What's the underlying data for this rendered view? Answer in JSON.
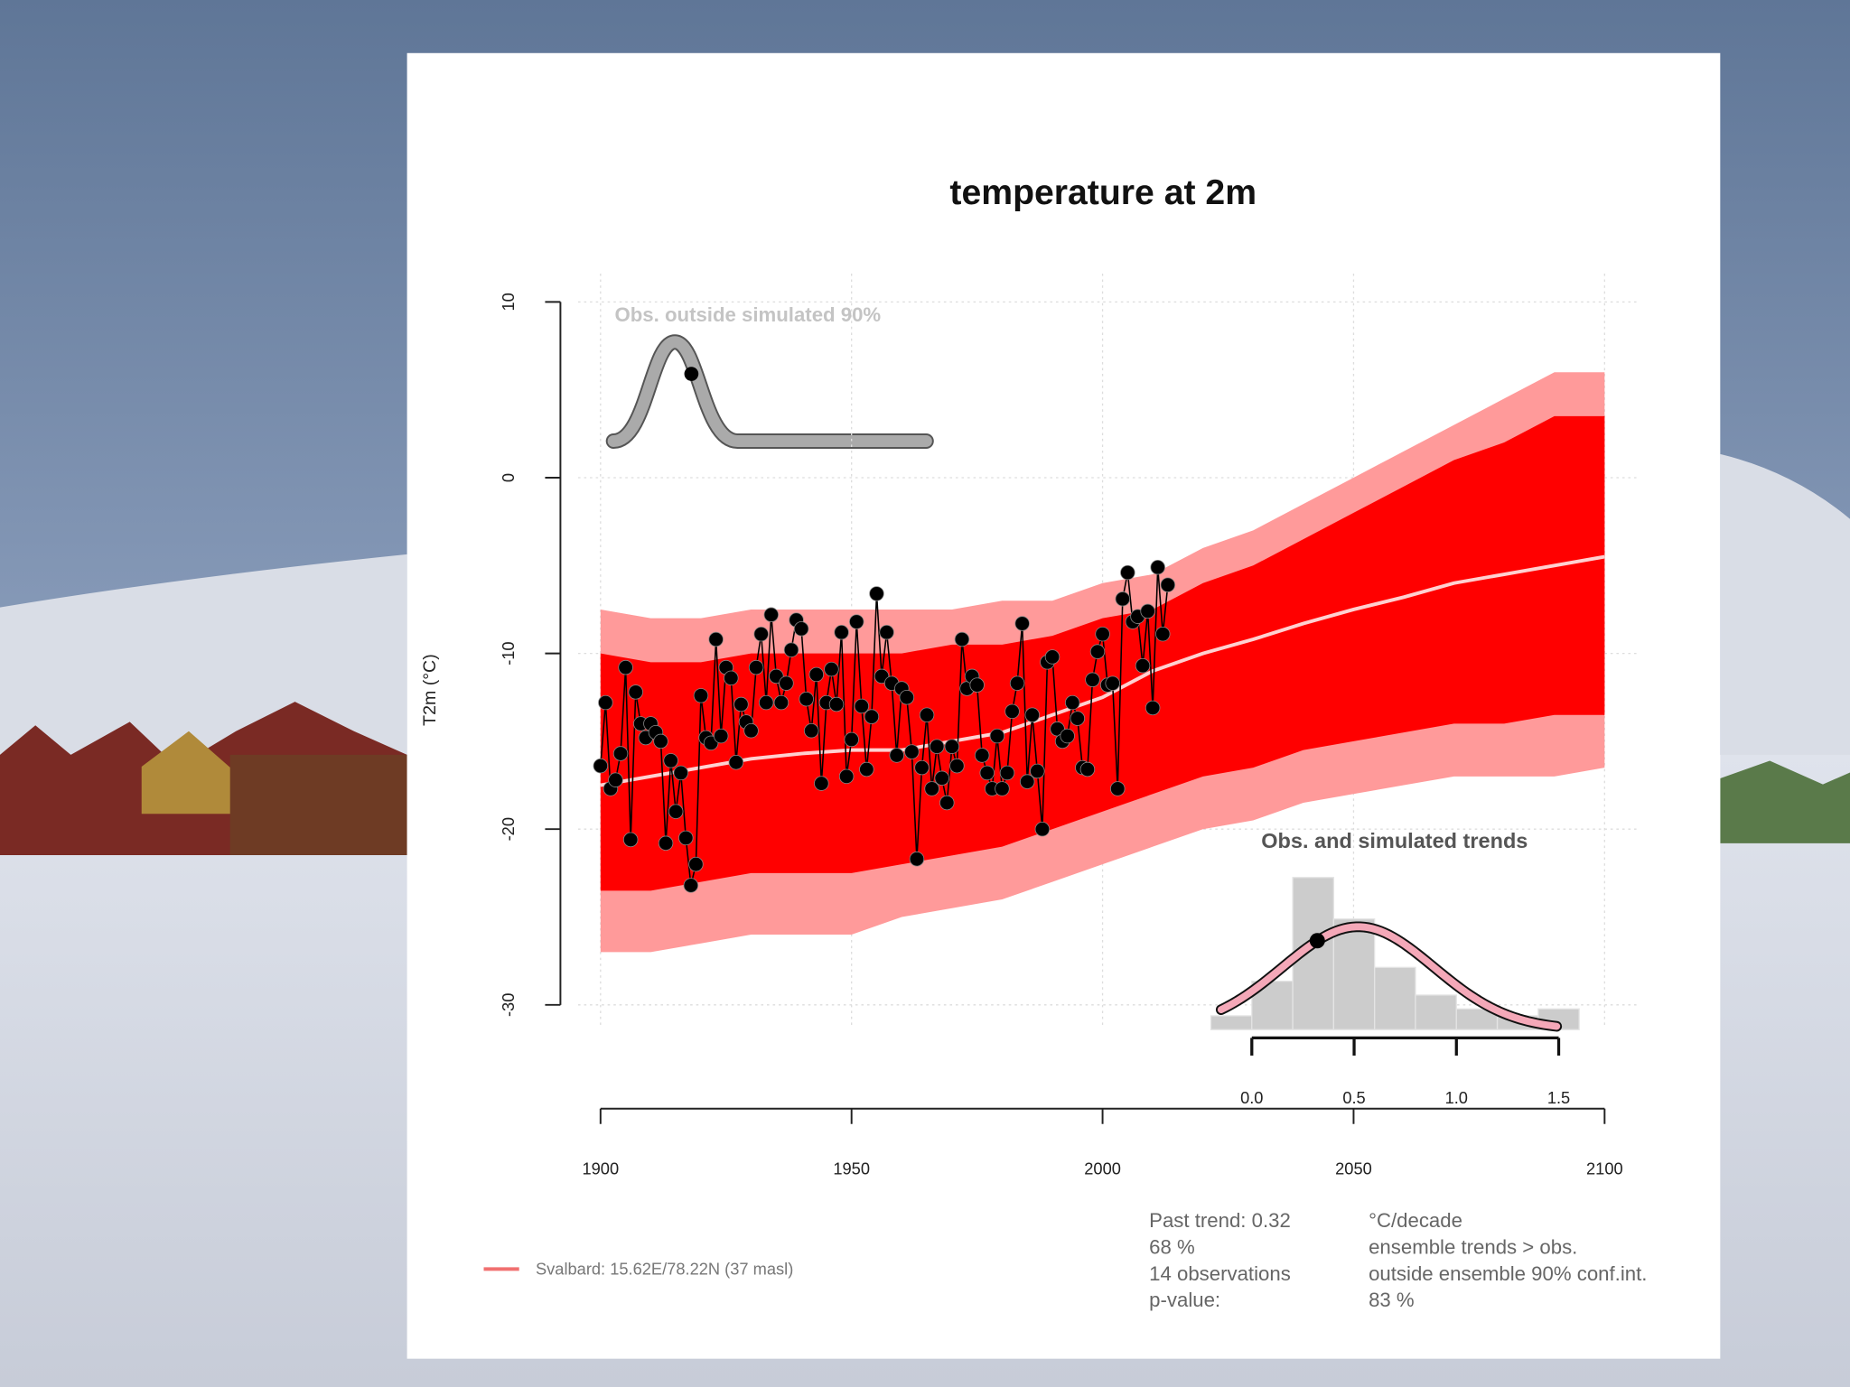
{
  "chart_data": [
    {
      "type": "line",
      "title": "temperature at 2m",
      "ylabel": "T2m (°C)",
      "xlim": [
        1900,
        2100
      ],
      "ylim": [
        -30,
        10
      ],
      "xticks": [
        1900,
        1950,
        2000,
        2050,
        2100
      ],
      "yticks": [
        -30,
        -20,
        -10,
        0,
        10
      ],
      "grid": true,
      "annotation": "Obs. outside simulated 90%",
      "ensemble": {
        "x": [
          1900,
          1910,
          1920,
          1930,
          1940,
          1950,
          1960,
          1970,
          1980,
          1990,
          2000,
          2010,
          2020,
          2030,
          2040,
          2050,
          2060,
          2070,
          2080,
          2090,
          2100
        ],
        "max": [
          -7.5,
          -8,
          -8,
          -7.5,
          -7.5,
          -7.5,
          -7.5,
          -7.5,
          -7,
          -7,
          -6,
          -5.5,
          -4,
          -3,
          -1.5,
          0,
          1.5,
          3,
          4.5,
          6,
          6
        ],
        "p95": [
          -10,
          -10.5,
          -10.5,
          -10,
          -10,
          -10,
          -10,
          -9.5,
          -9.5,
          -9,
          -8,
          -7.5,
          -6,
          -5,
          -3.5,
          -2,
          -0.5,
          1,
          2,
          3.5,
          3.5
        ],
        "mean": [
          -17.5,
          -17,
          -16.5,
          -16,
          -15.7,
          -15.5,
          -15.5,
          -15,
          -14.5,
          -13.5,
          -12.5,
          -11,
          -10,
          -9.2,
          -8.3,
          -7.5,
          -6.8,
          -6,
          -5.5,
          -5,
          -4.5
        ],
        "p05": [
          -23.5,
          -23.5,
          -23,
          -22.5,
          -22.5,
          -22.5,
          -22,
          -21.5,
          -21,
          -20,
          -19,
          -18,
          -17,
          -16.5,
          -15.5,
          -15,
          -14.5,
          -14,
          -14,
          -13.5,
          -13.5
        ],
        "min": [
          -27,
          -27,
          -26.5,
          -26,
          -26,
          -26,
          -25,
          -24.5,
          -24,
          -23,
          -22,
          -21,
          -20,
          -19.5,
          -18.5,
          -18,
          -17.5,
          -17,
          -17,
          -17,
          -16.5
        ],
        "outer_color": "#ff9a9a",
        "inner_color": "#ff0000",
        "mean_color": "#ffd0d0"
      },
      "observations": {
        "color": "#000000",
        "x": [
          1900,
          1901,
          1902,
          1903,
          1904,
          1905,
          1906,
          1907,
          1908,
          1909,
          1910,
          1911,
          1912,
          1913,
          1914,
          1915,
          1916,
          1917,
          1918,
          1919,
          1920,
          1921,
          1922,
          1923,
          1924,
          1925,
          1926,
          1927,
          1928,
          1929,
          1930,
          1931,
          1932,
          1933,
          1934,
          1935,
          1936,
          1937,
          1938,
          1939,
          1940,
          1941,
          1942,
          1943,
          1944,
          1945,
          1946,
          1947,
          1948,
          1949,
          1950,
          1951,
          1952,
          1953,
          1954,
          1955,
          1956,
          1957,
          1958,
          1959,
          1960,
          1961,
          1962,
          1963,
          1964,
          1965,
          1966,
          1967,
          1968,
          1969,
          1970,
          1971,
          1972,
          1973,
          1974,
          1975,
          1976,
          1977,
          1978,
          1979,
          1980,
          1981,
          1982,
          1983,
          1984,
          1985,
          1986,
          1987,
          1988,
          1989,
          1990,
          1991,
          1992,
          1993,
          1994,
          1995,
          1996,
          1997,
          1998,
          1999,
          2000,
          2001,
          2002,
          2003,
          2004,
          2005,
          2006,
          2007,
          2008,
          2009,
          2010,
          2011,
          2012,
          2013
        ],
        "values": [
          -16.4,
          -12.8,
          -17.7,
          -17.2,
          -15.7,
          -10.8,
          -20.6,
          -12.2,
          -14.0,
          -14.8,
          -14.0,
          -14.5,
          -15.0,
          -20.8,
          -16.1,
          -19.0,
          -16.8,
          -20.5,
          -23.2,
          -22.0,
          -12.4,
          -14.8,
          -15.1,
          -9.2,
          -14.7,
          -10.8,
          -11.4,
          -16.2,
          -12.9,
          -13.9,
          -14.4,
          -10.8,
          -8.9,
          -12.8,
          -7.8,
          -11.3,
          -12.8,
          -11.7,
          -9.8,
          -8.1,
          -8.6,
          -12.6,
          -14.4,
          -11.2,
          -17.4,
          -12.8,
          -10.9,
          -12.9,
          -8.8,
          -17.0,
          -14.9,
          -8.2,
          -13.0,
          -16.6,
          -13.6,
          -6.6,
          -11.3,
          -8.8,
          -11.7,
          -15.8,
          -12.0,
          -12.5,
          -15.6,
          -21.7,
          -16.5,
          -13.5,
          -17.7,
          -15.3,
          -17.1,
          -18.5,
          -15.3,
          -16.4,
          -9.2,
          -12.0,
          -11.3,
          -11.8,
          -15.8,
          -16.8,
          -17.7,
          -14.7,
          -17.7,
          -16.8,
          -13.3,
          -11.7,
          -8.3,
          -17.3,
          -13.5,
          -16.7,
          -20.0,
          -10.5,
          -10.2,
          -14.3,
          -15.0,
          -14.7,
          -12.8,
          -13.7,
          -16.5,
          -16.6,
          -11.5,
          -9.9,
          -8.9,
          -11.8,
          -11.7,
          -17.7,
          -6.9,
          -5.4,
          -8.2,
          -7.9,
          -10.7,
          -7.6,
          -13.1,
          -5.1,
          -8.9,
          -6.1
        ]
      },
      "legend": {
        "label": "Svalbard: 15.62E/78.22N (37 masl)",
        "color": "#f07070"
      },
      "stats": {
        "left": [
          "Past trend: 0.32",
          "68 %",
          "14 observations",
          "p-value:"
        ],
        "right": [
          "°C/decade",
          "ensemble trends > obs.",
          "outside ensemble 90% conf.int.",
          "83 %"
        ]
      }
    },
    {
      "type": "histogram",
      "title": "Obs. and simulated trends",
      "bins": [
        -0.2,
        0,
        0.2,
        0.4,
        0.6,
        0.8,
        1.0,
        1.2,
        1.4,
        1.6
      ],
      "values": [
        0.1,
        0.35,
        1.1,
        0.8,
        0.45,
        0.25,
        0.15,
        0.1,
        0.15
      ],
      "ylim": [
        0,
        1.1
      ],
      "xticks": [
        {
          "value": 0,
          "label": "0.0"
        },
        {
          "value": 0.5,
          "label": "0.5"
        },
        {
          "value": 1,
          "label": "1.0"
        },
        {
          "value": 1.5,
          "label": "1.5"
        }
      ],
      "color": "#cccccc",
      "fit_color": "#f4a8b8",
      "fit_mean": 0.52,
      "fit_sd": 0.37,
      "obs_trend": 0.32
    }
  ]
}
